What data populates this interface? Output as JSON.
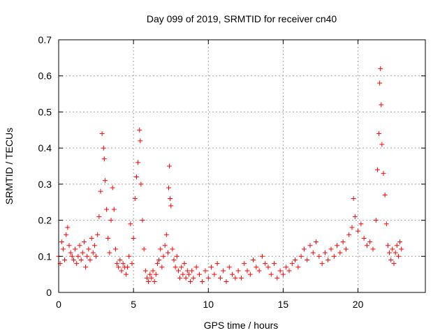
{
  "chart_data": {
    "type": "scatter",
    "title": "Day 099 of 2019, SRMTID for receiver cn40",
    "xlabel": "GPS time / hours",
    "ylabel": "SRMTID / TECUs",
    "xlim": [
      0,
      24.5
    ],
    "ylim": [
      0,
      0.7
    ],
    "xticks": [
      0,
      5,
      10,
      15,
      20
    ],
    "yticks": [
      0,
      0.1,
      0.2,
      0.3,
      0.4,
      0.5,
      0.6,
      0.7
    ],
    "xtick_labels": [
      "0",
      "5",
      "10",
      "15",
      "20"
    ],
    "ytick_labels": [
      "0",
      "0.1",
      "0.2",
      "0.3",
      "0.4",
      "0.5",
      "0.6",
      "0.7"
    ],
    "grid": true,
    "marker": "+",
    "marker_color": "#ff0000",
    "series": [
      {
        "name": "SRMTID",
        "x_range": [
          0,
          22.9
        ],
        "points": [
          [
            0.0,
            0.1
          ],
          [
            0.1,
            0.08
          ],
          [
            0.2,
            0.14
          ],
          [
            0.3,
            0.12
          ],
          [
            0.4,
            0.09
          ],
          [
            0.5,
            0.16
          ],
          [
            0.6,
            0.18
          ],
          [
            0.7,
            0.13
          ],
          [
            0.8,
            0.11
          ],
          [
            0.9,
            0.1
          ],
          [
            1.0,
            0.09
          ],
          [
            1.1,
            0.12
          ],
          [
            1.2,
            0.08
          ],
          [
            1.3,
            0.1
          ],
          [
            1.4,
            0.13
          ],
          [
            1.5,
            0.09
          ],
          [
            1.6,
            0.11
          ],
          [
            1.7,
            0.14
          ],
          [
            1.8,
            0.07
          ],
          [
            1.9,
            0.1
          ],
          [
            2.0,
            0.12
          ],
          [
            2.1,
            0.09
          ],
          [
            2.2,
            0.15
          ],
          [
            2.3,
            0.11
          ],
          [
            2.4,
            0.13
          ],
          [
            2.5,
            0.1
          ],
          [
            2.6,
            0.16
          ],
          [
            2.7,
            0.21
          ],
          [
            2.8,
            0.28
          ],
          [
            2.9,
            0.44
          ],
          [
            3.0,
            0.4
          ],
          [
            3.05,
            0.37
          ],
          [
            3.1,
            0.31
          ],
          [
            3.2,
            0.23
          ],
          [
            3.3,
            0.15
          ],
          [
            3.4,
            0.11
          ],
          [
            3.5,
            0.2
          ],
          [
            3.6,
            0.29
          ],
          [
            3.7,
            0.23
          ],
          [
            3.8,
            0.12
          ],
          [
            3.9,
            0.08
          ],
          [
            4.0,
            0.07
          ],
          [
            4.1,
            0.09
          ],
          [
            4.2,
            0.06
          ],
          [
            4.3,
            0.08
          ],
          [
            4.4,
            0.07
          ],
          [
            4.5,
            0.05
          ],
          [
            4.6,
            0.07
          ],
          [
            4.7,
            0.1
          ],
          [
            4.8,
            0.19
          ],
          [
            4.9,
            0.08
          ],
          [
            5.0,
            0.15
          ],
          [
            5.1,
            0.26
          ],
          [
            5.2,
            0.32
          ],
          [
            5.3,
            0.36
          ],
          [
            5.4,
            0.45
          ],
          [
            5.45,
            0.42
          ],
          [
            5.5,
            0.3
          ],
          [
            5.6,
            0.2
          ],
          [
            5.7,
            0.12
          ],
          [
            5.8,
            0.06
          ],
          [
            5.9,
            0.04
          ],
          [
            6.0,
            0.03
          ],
          [
            6.1,
            0.05
          ],
          [
            6.2,
            0.04
          ],
          [
            6.3,
            0.06
          ],
          [
            6.4,
            0.03
          ],
          [
            6.5,
            0.05
          ],
          [
            6.6,
            0.08
          ],
          [
            6.7,
            0.09
          ],
          [
            6.8,
            0.12
          ],
          [
            6.9,
            0.07
          ],
          [
            7.0,
            0.1
          ],
          [
            7.1,
            0.13
          ],
          [
            7.2,
            0.16
          ],
          [
            7.3,
            0.11
          ],
          [
            7.35,
            0.29
          ],
          [
            7.4,
            0.35
          ],
          [
            7.45,
            0.26
          ],
          [
            7.5,
            0.24
          ],
          [
            7.6,
            0.12
          ],
          [
            7.7,
            0.09
          ],
          [
            7.8,
            0.07
          ],
          [
            7.9,
            0.1
          ],
          [
            8.0,
            0.06
          ],
          [
            8.1,
            0.04
          ],
          [
            8.2,
            0.07
          ],
          [
            8.3,
            0.05
          ],
          [
            8.4,
            0.08
          ],
          [
            8.5,
            0.04
          ],
          [
            8.6,
            0.06
          ],
          [
            8.7,
            0.05
          ],
          [
            8.8,
            0.03
          ],
          [
            8.9,
            0.06
          ],
          [
            9.0,
            0.04
          ],
          [
            9.2,
            0.07
          ],
          [
            9.4,
            0.05
          ],
          [
            9.6,
            0.03
          ],
          [
            9.8,
            0.06
          ],
          [
            10.0,
            0.04
          ],
          [
            10.2,
            0.07
          ],
          [
            10.4,
            0.05
          ],
          [
            10.6,
            0.08
          ],
          [
            10.8,
            0.04
          ],
          [
            11.0,
            0.06
          ],
          [
            11.2,
            0.03
          ],
          [
            11.4,
            0.07
          ],
          [
            11.6,
            0.05
          ],
          [
            11.8,
            0.04
          ],
          [
            12.0,
            0.06
          ],
          [
            12.2,
            0.04
          ],
          [
            12.4,
            0.08
          ],
          [
            12.6,
            0.06
          ],
          [
            12.8,
            0.05
          ],
          [
            13.0,
            0.09
          ],
          [
            13.2,
            0.07
          ],
          [
            13.4,
            0.06
          ],
          [
            13.6,
            0.1
          ],
          [
            13.8,
            0.08
          ],
          [
            14.0,
            0.07
          ],
          [
            14.2,
            0.05
          ],
          [
            14.4,
            0.08
          ],
          [
            14.6,
            0.04
          ],
          [
            14.8,
            0.06
          ],
          [
            15.0,
            0.05
          ],
          [
            15.2,
            0.07
          ],
          [
            15.4,
            0.06
          ],
          [
            15.6,
            0.08
          ],
          [
            15.8,
            0.09
          ],
          [
            16.0,
            0.07
          ],
          [
            16.2,
            0.1
          ],
          [
            16.4,
            0.12
          ],
          [
            16.6,
            0.09
          ],
          [
            16.8,
            0.13
          ],
          [
            17.0,
            0.11
          ],
          [
            17.2,
            0.14
          ],
          [
            17.4,
            0.1
          ],
          [
            17.6,
            0.08
          ],
          [
            17.8,
            0.11
          ],
          [
            18.0,
            0.09
          ],
          [
            18.2,
            0.12
          ],
          [
            18.4,
            0.1
          ],
          [
            18.6,
            0.13
          ],
          [
            18.8,
            0.11
          ],
          [
            19.0,
            0.14
          ],
          [
            19.2,
            0.12
          ],
          [
            19.4,
            0.16
          ],
          [
            19.6,
            0.18
          ],
          [
            19.7,
            0.26
          ],
          [
            19.8,
            0.21
          ],
          [
            20.0,
            0.17
          ],
          [
            20.2,
            0.19
          ],
          [
            20.4,
            0.15
          ],
          [
            20.6,
            0.13
          ],
          [
            20.8,
            0.14
          ],
          [
            21.0,
            0.12
          ],
          [
            21.2,
            0.2
          ],
          [
            21.3,
            0.34
          ],
          [
            21.4,
            0.44
          ],
          [
            21.45,
            0.58
          ],
          [
            21.5,
            0.62
          ],
          [
            21.55,
            0.52
          ],
          [
            21.6,
            0.41
          ],
          [
            21.7,
            0.33
          ],
          [
            21.8,
            0.27
          ],
          [
            21.9,
            0.19
          ],
          [
            22.0,
            0.13
          ],
          [
            22.1,
            0.11
          ],
          [
            22.2,
            0.09
          ],
          [
            22.3,
            0.12
          ],
          [
            22.4,
            0.08
          ],
          [
            22.5,
            0.11
          ],
          [
            22.6,
            0.13
          ],
          [
            22.7,
            0.1
          ],
          [
            22.8,
            0.14
          ],
          [
            22.9,
            0.12
          ]
        ]
      }
    ]
  }
}
